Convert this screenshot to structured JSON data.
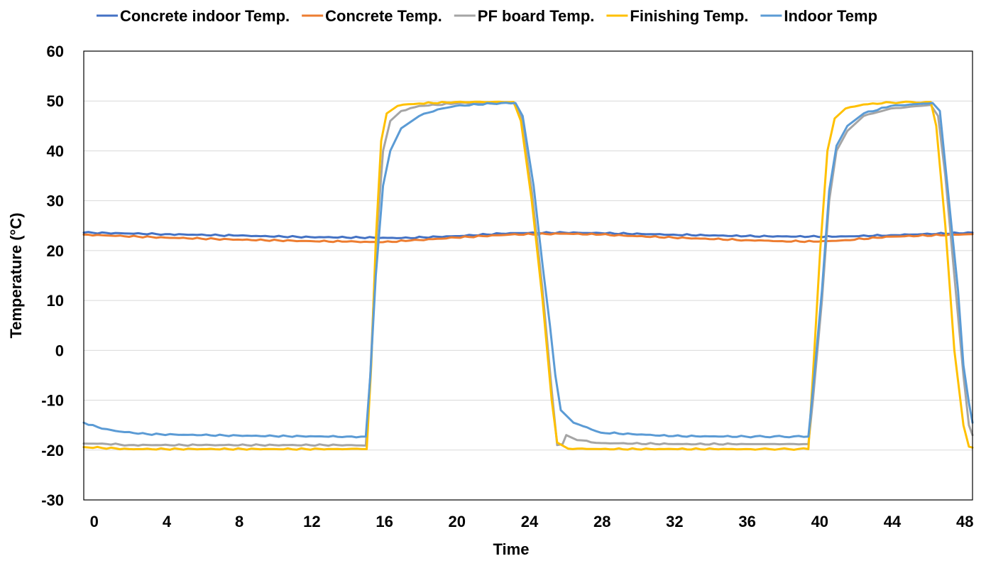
{
  "chart_data": {
    "type": "line",
    "xlabel": "Time",
    "ylabel": "Temperature (°C)",
    "xlim": [
      -0.5,
      48.5
    ],
    "ylim": [
      -30,
      60
    ],
    "x_ticks": [
      "0",
      "4",
      "8",
      "12",
      "16",
      "20",
      "24",
      "28",
      "32",
      "36",
      "40",
      "44",
      "48"
    ],
    "y_ticks": [
      "-30",
      "-20",
      "-10",
      "0",
      "10",
      "20",
      "30",
      "40",
      "50",
      "60"
    ],
    "legend_position": "top",
    "grid": "horizontal",
    "series": [
      {
        "name": "Concrete indoor Temp.",
        "color": "#4472C4",
        "x": [
          -0.5,
          4,
          8,
          12,
          15.5,
          17,
          20,
          23,
          26,
          28,
          32,
          36,
          39.5,
          41,
          44,
          48.5
        ],
        "y": [
          23.6,
          23.3,
          23.0,
          22.7,
          22.6,
          22.5,
          22.9,
          23.5,
          23.6,
          23.5,
          23.2,
          22.9,
          22.8,
          22.8,
          23.1,
          23.6
        ]
      },
      {
        "name": "Concrete Temp.",
        "color": "#ED7D31",
        "x": [
          -0.5,
          4,
          8,
          12,
          14,
          16,
          17.5,
          20,
          23,
          26,
          28,
          32,
          36,
          38,
          40,
          41.5,
          44,
          48.5
        ],
        "y": [
          23.2,
          22.6,
          22.2,
          21.9,
          21.8,
          21.7,
          22.0,
          22.6,
          23.2,
          23.4,
          23.2,
          22.6,
          22.1,
          21.9,
          21.8,
          22.1,
          22.8,
          23.3
        ]
      },
      {
        "name": "PF board Temp.",
        "color": "#A5A5A5",
        "x": [
          -0.5,
          0.5,
          2,
          6,
          10,
          14,
          15.05,
          15.3,
          15.6,
          16,
          16.4,
          17,
          18,
          20,
          23.2,
          23.6,
          24.2,
          24.8,
          25.3,
          25.6,
          25.9,
          26.1,
          26.7,
          28,
          32,
          36,
          39.45,
          39.7,
          40.2,
          40.6,
          41,
          41.6,
          42.5,
          44,
          46.2,
          46.6,
          47,
          47.5,
          48,
          48.3,
          48.5
        ],
        "y": [
          -18.7,
          -18.7,
          -19.0,
          -19.0,
          -19.0,
          -19.0,
          -19.1,
          -5,
          20,
          40,
          46,
          48,
          49,
          49.5,
          49.6,
          47,
          32,
          12,
          -8,
          -19,
          -18.8,
          -17.0,
          -18.0,
          -18.6,
          -18.8,
          -18.8,
          -18.8,
          -10,
          10,
          30,
          40,
          44,
          47,
          48.5,
          49.2,
          47,
          35,
          15,
          -5,
          -15,
          -17
        ]
      },
      {
        "name": "Finishing Temp.",
        "color": "#FFC000",
        "x": [
          -0.5,
          2,
          6,
          10,
          14,
          15.1,
          15.35,
          15.6,
          15.9,
          16.2,
          16.8,
          18,
          20,
          23.2,
          23.6,
          24.2,
          24.8,
          25.3,
          25.6,
          26.2,
          28,
          32,
          36,
          39.45,
          39.7,
          40.1,
          40.5,
          40.9,
          41.5,
          42.5,
          44,
          46.2,
          46.5,
          47,
          47.5,
          48,
          48.3,
          48.5
        ],
        "y": [
          -19.4,
          -19.8,
          -19.8,
          -19.8,
          -19.8,
          -19.8,
          -3,
          22,
          42,
          47.5,
          49,
          49.5,
          49.8,
          49.8,
          46,
          30,
          10,
          -10,
          -18.5,
          -19.7,
          -19.8,
          -19.8,
          -19.8,
          -19.8,
          -5,
          20,
          40,
          46.5,
          48.5,
          49.3,
          49.7,
          49.8,
          45,
          25,
          0,
          -15,
          -19.3,
          -19.5
        ]
      },
      {
        "name": "Indoor Temp",
        "color": "#5B9BD5",
        "x": [
          -0.5,
          0.5,
          1.5,
          3,
          6,
          10,
          14,
          15.05,
          15.3,
          15.6,
          16,
          16.4,
          17,
          18,
          19,
          20,
          22,
          23.3,
          23.7,
          24.3,
          24.8,
          25.2,
          25.5,
          25.8,
          26.5,
          28,
          32,
          36,
          39.45,
          39.7,
          40.2,
          40.6,
          41,
          41.6,
          42.5,
          44,
          46.3,
          46.7,
          47.2,
          47.7,
          48,
          48.3,
          48.5
        ],
        "y": [
          -14.5,
          -15.7,
          -16.3,
          -16.8,
          -17.0,
          -17.2,
          -17.3,
          -17.3,
          -5,
          15,
          33,
          40,
          44.5,
          47,
          48.3,
          49,
          49.5,
          49.6,
          47,
          33,
          17,
          5,
          -5,
          -12,
          -14.5,
          -16.5,
          -17.2,
          -17.3,
          -17.3,
          -8,
          12,
          32,
          41,
          45,
          47.5,
          49,
          49.6,
          48,
          30,
          12,
          -3,
          -10.5,
          -14.5
        ]
      }
    ]
  }
}
